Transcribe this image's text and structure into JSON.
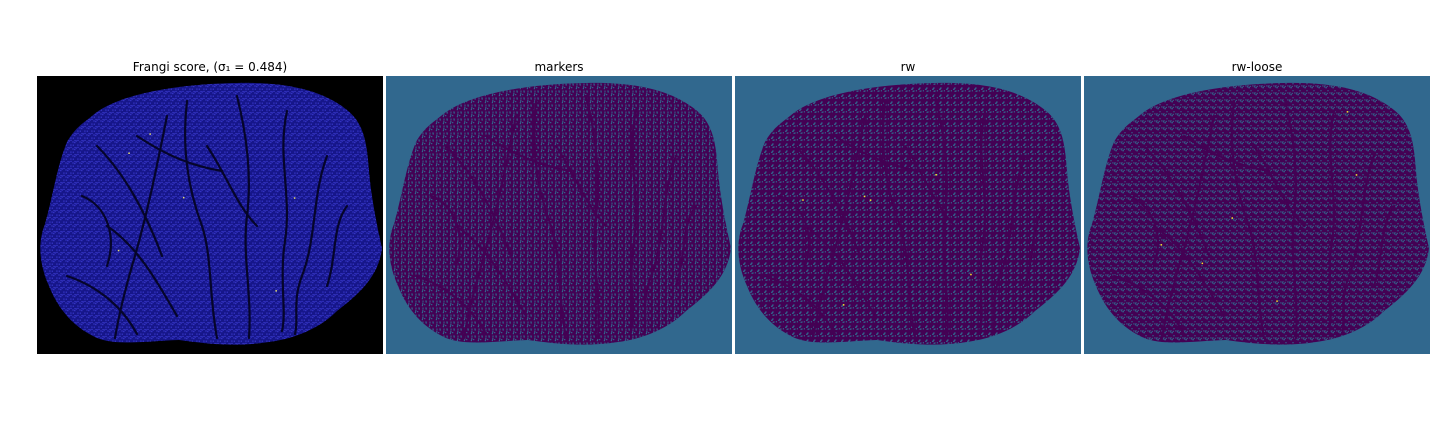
{
  "panels": [
    {
      "title": "Frangi score, (σ₁ = 0.484)",
      "background": "#000000",
      "blob": "#16168a",
      "speckle": "#3a3ad0",
      "vessel": "#05052a",
      "accent": "#e8e070"
    },
    {
      "title": "markers",
      "background": "#31688e",
      "blob": "#440154",
      "speckle": "#31688e",
      "vessel": "#440154",
      "accent": "#440154"
    },
    {
      "title": "rw",
      "background": "#31688e",
      "blob": "#440154",
      "speckle": "#31688e",
      "vessel": "#440154",
      "accent": "#fde725"
    },
    {
      "title": "rw-loose",
      "background": "#31688e",
      "blob": "#440154",
      "speckle": "#31688e",
      "vessel": "#440154",
      "accent": "#fde725"
    }
  ]
}
